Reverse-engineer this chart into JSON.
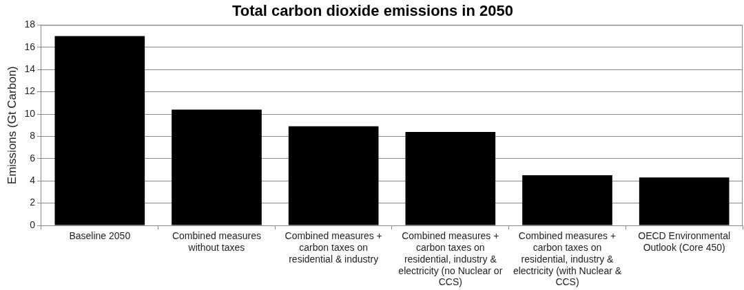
{
  "chart_data": {
    "type": "bar",
    "title": "Total carbon dioxide emissions in 2050",
    "ylabel": "Emissions (Gt Carbon)",
    "categories": [
      "Baseline 2050",
      "Combined measures without taxes",
      "Combined measures + carbon taxes on residential & industry",
      "Combined measures + carbon taxes on residential, industry & electricity (no Nuclear or CCS)",
      "Combined measures + carbon taxes on residential, industry & electricity (with Nuclear & CCS)",
      "OECD Environmental Outlook (Core 450)"
    ],
    "values": [
      17,
      10.4,
      8.9,
      8.4,
      4.5,
      4.3
    ],
    "color": "#000000",
    "ylim": [
      0,
      18
    ],
    "yticks": [
      0,
      2,
      4,
      6,
      8,
      10,
      12,
      14,
      16,
      18
    ],
    "grid": "y",
    "legend": false
  }
}
